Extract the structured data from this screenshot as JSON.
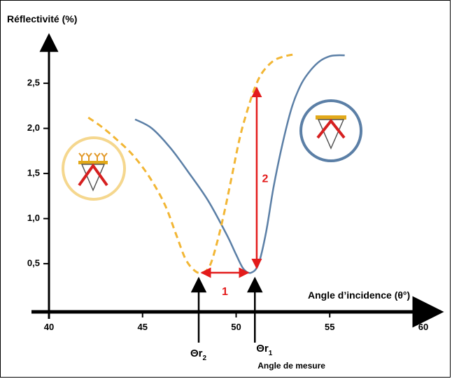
{
  "chart_data": {
    "type": "line",
    "ylabel": "Réflectivité (%)",
    "xlabel": "Angle d’incidence (θ°)",
    "x_ticks": [
      40,
      45,
      50,
      55,
      60
    ],
    "y_ticks": [
      "0,5",
      "1,0",
      "1,5",
      "2,0",
      "2,5"
    ],
    "y_tick_values": [
      0.5,
      1.0,
      1.5,
      2.0,
      2.5
    ],
    "xlim": [
      40,
      61
    ],
    "ylim": [
      0,
      2.9
    ],
    "series": [
      {
        "style": "solid",
        "color": "#5b7fa6",
        "x": [
          44.6,
          45.5,
          46.5,
          47.5,
          48.5,
          49.5,
          50.0,
          50.4,
          50.8,
          51.2,
          51.6,
          52.0,
          52.5,
          53.0,
          53.5,
          54.0,
          54.5,
          55.0,
          55.4,
          55.8
        ],
        "y": [
          2.1,
          2.0,
          1.78,
          1.5,
          1.2,
          0.82,
          0.6,
          0.44,
          0.4,
          0.5,
          0.85,
          1.35,
          1.85,
          2.25,
          2.5,
          2.65,
          2.75,
          2.8,
          2.81,
          2.81
        ]
      },
      {
        "style": "dashed",
        "color": "#f2b634",
        "x": [
          42.1,
          42.8,
          43.6,
          44.5,
          45.4,
          46.2,
          46.8,
          47.3,
          47.8,
          48.2,
          48.6,
          49.0,
          49.4,
          49.8,
          50.2,
          50.6,
          51.0,
          51.4,
          52.0,
          52.6,
          53.1
        ],
        "y": [
          2.12,
          2.02,
          1.88,
          1.7,
          1.45,
          1.15,
          0.82,
          0.55,
          0.42,
          0.4,
          0.48,
          0.75,
          1.1,
          1.5,
          1.9,
          2.2,
          2.45,
          2.62,
          2.75,
          2.8,
          2.82
        ]
      }
    ],
    "annotations": [
      {
        "text": "1",
        "type": "double-arrow",
        "x_from": 48.0,
        "x_to": 50.8,
        "y": 0.4
      },
      {
        "text": "2",
        "type": "double-arrow",
        "x": 51.1,
        "y_from": 0.45,
        "y_to": 2.45
      }
    ],
    "markers": [
      {
        "label": "Θr",
        "sub": "2",
        "x": 48.0
      },
      {
        "label": "Θr",
        "sub": "1",
        "x": 51.0,
        "caption": "Angle de mesure"
      }
    ]
  }
}
